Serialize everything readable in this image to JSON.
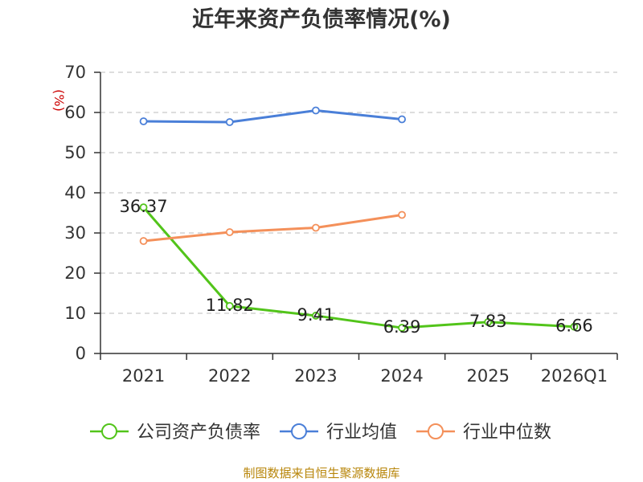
{
  "chart_data": {
    "type": "line",
    "title": "近年来资产负债率情况(%)",
    "ylabel": "(%)",
    "xlabel": "",
    "ylim": [
      0,
      70
    ],
    "yticks": [
      0,
      10,
      20,
      30,
      40,
      50,
      60,
      70
    ],
    "categories": [
      "2021",
      "2022",
      "2023",
      "2024",
      "2025",
      "2026Q1"
    ],
    "grid": true,
    "legend_position": "bottom",
    "series": [
      {
        "name": "公司资产负债率",
        "color": "#52c41a",
        "values": [
          36.37,
          11.82,
          9.41,
          6.39,
          7.83,
          6.66
        ],
        "labels": [
          "36.37",
          "11.82",
          "9.41",
          "6.39",
          "7.83",
          "6.66"
        ]
      },
      {
        "name": "行业均值",
        "color": "#4a7fd8",
        "values": [
          57.8,
          57.6,
          60.5,
          58.3,
          null,
          null
        ]
      },
      {
        "name": "行业中位数",
        "color": "#f4905a",
        "values": [
          28.0,
          30.2,
          31.3,
          34.5,
          null,
          null
        ]
      }
    ]
  },
  "source": "制图数据来自恒生聚源数据库"
}
